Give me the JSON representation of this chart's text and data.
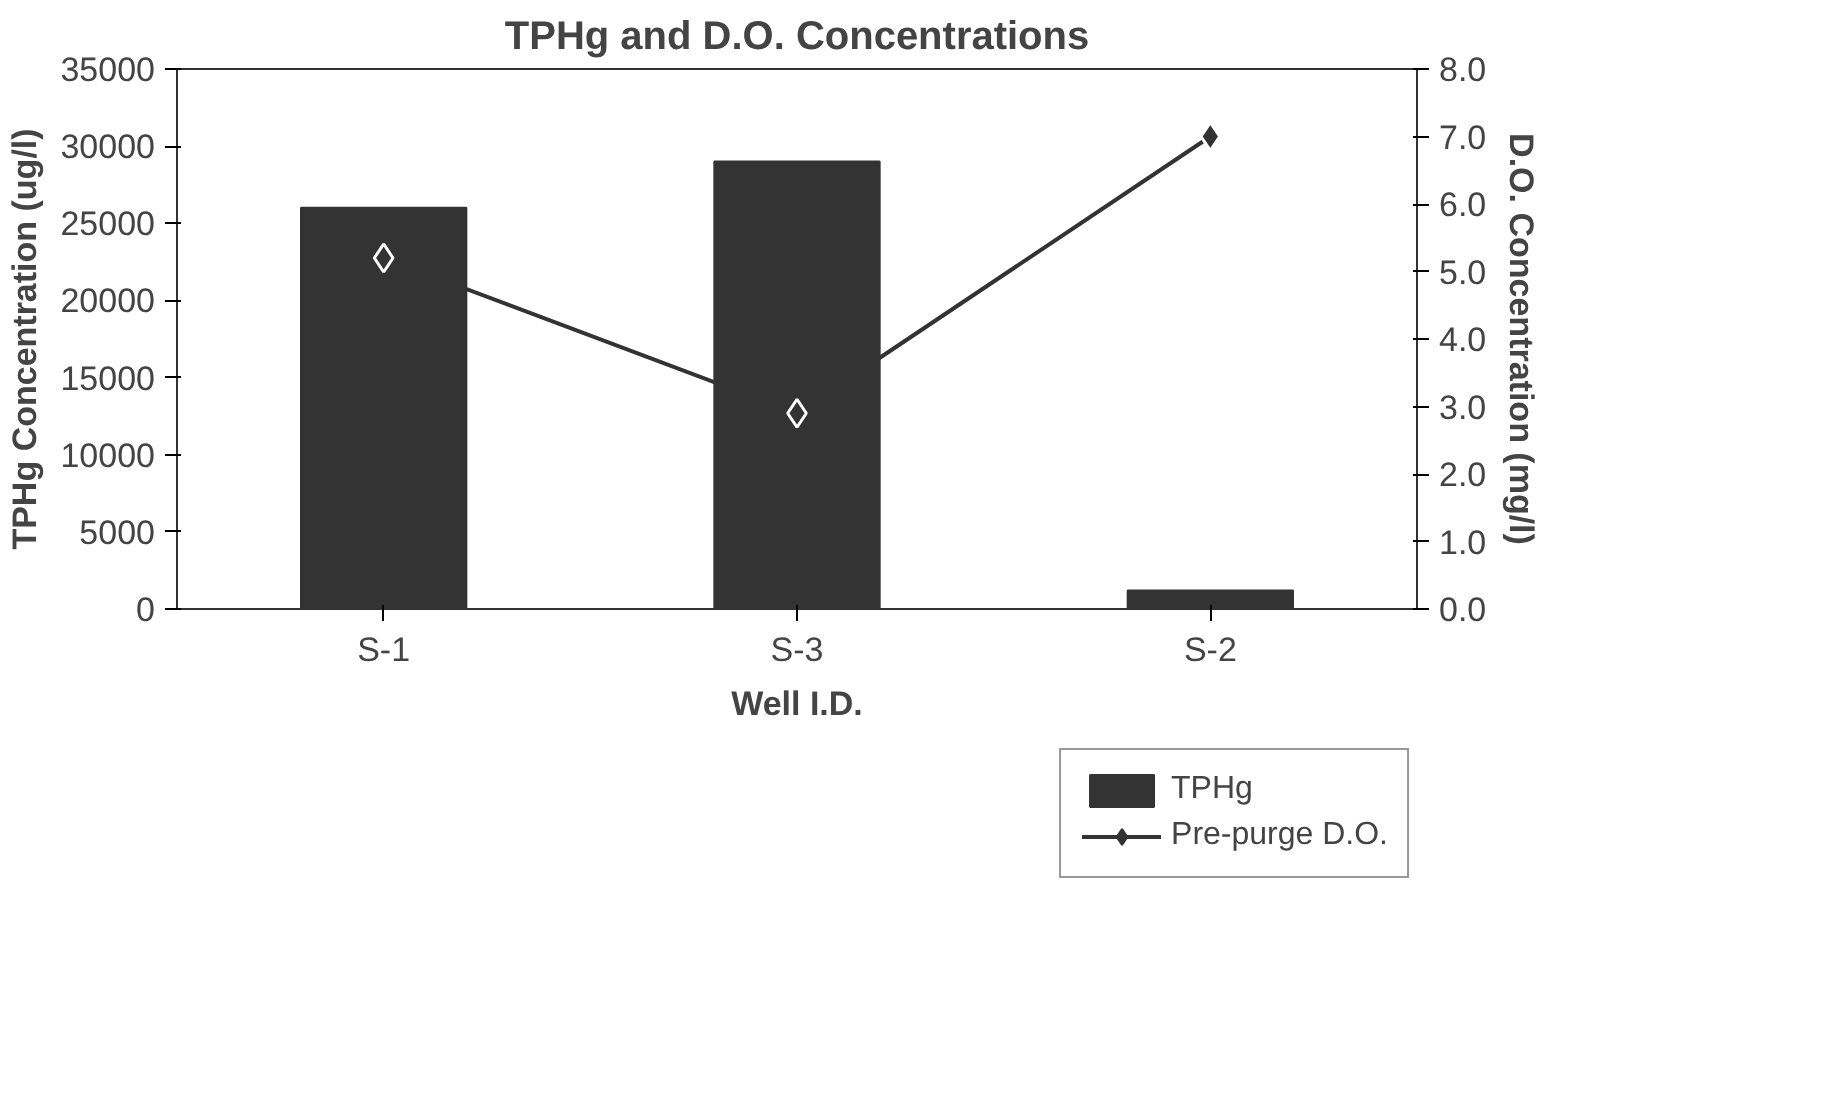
{
  "chart_data": {
    "type": "bar",
    "title": "TPHg and D.O. Concentrations",
    "xlabel": "Well I.D.",
    "ylabel": "TPHg Concentration (ug/l)",
    "y2label": "D.O. Concentration (mg/l)",
    "categories": [
      "S-1",
      "S-3",
      "S-2"
    ],
    "series": [
      {
        "name": "TPHg",
        "color": "#333333",
        "values": [
          26000,
          29000,
          1200
        ]
      },
      {
        "name": "Pre-purge D.O.",
        "type": "line",
        "axis": "y2",
        "color": "#333333",
        "marker": "diamond",
        "values": [
          5.2,
          2.9,
          7.0
        ]
      }
    ],
    "ylim": [
      0,
      35000
    ],
    "yticks": [
      0,
      5000,
      10000,
      15000,
      20000,
      25000,
      30000,
      35000
    ],
    "y2lim": [
      0,
      8
    ],
    "y2ticks": [
      {
        "value": 0,
        "label": "0.0"
      },
      {
        "value": 1,
        "label": "1.0"
      },
      {
        "value": 2,
        "label": "2.0"
      },
      {
        "value": 3,
        "label": "3.0"
      },
      {
        "value": 4,
        "label": "4.0"
      },
      {
        "value": 5,
        "label": "5.0"
      },
      {
        "value": 6,
        "label": "6.0"
      },
      {
        "value": 7,
        "label": "7.0"
      },
      {
        "value": 8,
        "label": "8.0"
      }
    ],
    "grid": false,
    "legend": "bottom right"
  }
}
